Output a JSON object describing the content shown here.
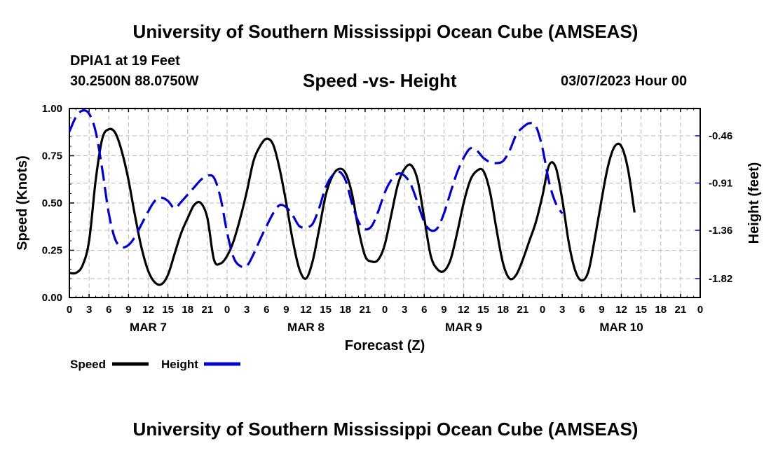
{
  "header": {
    "title": "University of Southern Mississippi Ocean Cube (AMSEAS)",
    "station": "DPIA1 at 19 Feet",
    "coordinates": "30.2500N  88.0750W",
    "subtitle": "Speed -vs- Height",
    "datetime": "03/07/2023 Hour 00"
  },
  "footer": {
    "title": "University of Southern Mississippi Ocean Cube (AMSEAS)"
  },
  "chart_data": {
    "type": "line",
    "title": "Speed -vs- Height",
    "xlabel": "Forecast (Z)",
    "ylabel": "Speed (Knots)",
    "y2label": "Height (feet)",
    "xlim": [
      0,
      96
    ],
    "ylim": [
      0,
      1.0
    ],
    "y2lim": [
      -2.0,
      -0.2
    ],
    "grid": true,
    "x_tick_labels": [
      "0",
      "3",
      "6",
      "9",
      "12",
      "15",
      "18",
      "21",
      "0",
      "3",
      "6",
      "9",
      "12",
      "15",
      "18",
      "21",
      "0",
      "3",
      "6",
      "9",
      "12",
      "15",
      "18",
      "21",
      "0",
      "3",
      "6",
      "9",
      "12",
      "15",
      "18",
      "21",
      "0"
    ],
    "y_ticks": [
      0.0,
      0.25,
      0.5,
      0.75,
      1.0
    ],
    "y_tick_labels": [
      "0.00",
      "0.25",
      "0.50",
      "0.75",
      "1.00"
    ],
    "y2_ticks": [
      -0.46,
      -0.91,
      -1.36,
      -1.82
    ],
    "y2_tick_labels": [
      "-0.46",
      "-0.91",
      "-1.36",
      "-1.82"
    ],
    "day_labels": [
      {
        "label": "MAR 7",
        "hour": 12
      },
      {
        "label": "MAR 8",
        "hour": 36
      },
      {
        "label": "MAR 9",
        "hour": 60
      },
      {
        "label": "MAR 10",
        "hour": 84
      }
    ],
    "series": [
      {
        "name": "Speed",
        "axis": "left",
        "color": "#000000",
        "dash": "solid",
        "points": [
          [
            0,
            0.13
          ],
          [
            1,
            0.13
          ],
          [
            2,
            0.17
          ],
          [
            3,
            0.3
          ],
          [
            4,
            0.62
          ],
          [
            5,
            0.84
          ],
          [
            6,
            0.89
          ],
          [
            7,
            0.87
          ],
          [
            8,
            0.77
          ],
          [
            9,
            0.62
          ],
          [
            10,
            0.43
          ],
          [
            11,
            0.26
          ],
          [
            12,
            0.14
          ],
          [
            13,
            0.08
          ],
          [
            14,
            0.07
          ],
          [
            15,
            0.12
          ],
          [
            16,
            0.23
          ],
          [
            17,
            0.34
          ],
          [
            18,
            0.42
          ],
          [
            19,
            0.49
          ],
          [
            20,
            0.5
          ],
          [
            21,
            0.42
          ],
          [
            22,
            0.2
          ],
          [
            23,
            0.18
          ],
          [
            24,
            0.22
          ],
          [
            25,
            0.3
          ],
          [
            26,
            0.42
          ],
          [
            27,
            0.56
          ],
          [
            28,
            0.72
          ],
          [
            29,
            0.8
          ],
          [
            30,
            0.84
          ],
          [
            31,
            0.81
          ],
          [
            32,
            0.68
          ],
          [
            33,
            0.5
          ],
          [
            34,
            0.3
          ],
          [
            35,
            0.15
          ],
          [
            36,
            0.1
          ],
          [
            37,
            0.19
          ],
          [
            38,
            0.36
          ],
          [
            39,
            0.54
          ],
          [
            40,
            0.64
          ],
          [
            41,
            0.68
          ],
          [
            42,
            0.66
          ],
          [
            43,
            0.55
          ],
          [
            44,
            0.36
          ],
          [
            45,
            0.22
          ],
          [
            46,
            0.19
          ],
          [
            47,
            0.2
          ],
          [
            48,
            0.28
          ],
          [
            49,
            0.44
          ],
          [
            50,
            0.6
          ],
          [
            51,
            0.68
          ],
          [
            52,
            0.7
          ],
          [
            53,
            0.62
          ],
          [
            54,
            0.42
          ],
          [
            55,
            0.22
          ],
          [
            56,
            0.15
          ],
          [
            57,
            0.14
          ],
          [
            58,
            0.2
          ],
          [
            59,
            0.34
          ],
          [
            60,
            0.5
          ],
          [
            61,
            0.62
          ],
          [
            62,
            0.67
          ],
          [
            63,
            0.67
          ],
          [
            64,
            0.56
          ],
          [
            65,
            0.36
          ],
          [
            66,
            0.18
          ],
          [
            67,
            0.1
          ],
          [
            68,
            0.12
          ],
          [
            69,
            0.2
          ],
          [
            70,
            0.3
          ],
          [
            71,
            0.4
          ],
          [
            72,
            0.54
          ],
          [
            73,
            0.7
          ],
          [
            74,
            0.69
          ],
          [
            75,
            0.52
          ],
          [
            76,
            0.29
          ],
          [
            77,
            0.14
          ],
          [
            78,
            0.09
          ],
          [
            79,
            0.14
          ],
          [
            80,
            0.32
          ],
          [
            81,
            0.52
          ],
          [
            82,
            0.7
          ],
          [
            83,
            0.8
          ],
          [
            84,
            0.8
          ],
          [
            85,
            0.68
          ],
          [
            86,
            0.45
          ]
        ]
      },
      {
        "name": "Height",
        "axis": "right",
        "color": "#0000cc",
        "dash": "dashed",
        "points": [
          [
            0,
            -0.42
          ],
          [
            1,
            -0.28
          ],
          [
            2,
            -0.22
          ],
          [
            3,
            -0.25
          ],
          [
            4,
            -0.42
          ],
          [
            5,
            -0.78
          ],
          [
            6,
            -1.2
          ],
          [
            7,
            -1.45
          ],
          [
            8,
            -1.52
          ],
          [
            9,
            -1.5
          ],
          [
            10,
            -1.42
          ],
          [
            11,
            -1.3
          ],
          [
            12,
            -1.18
          ],
          [
            13,
            -1.08
          ],
          [
            14,
            -1.05
          ],
          [
            15,
            -1.08
          ],
          [
            16,
            -1.15
          ],
          [
            17,
            -1.09
          ],
          [
            18,
            -1.02
          ],
          [
            19,
            -0.95
          ],
          [
            20,
            -0.88
          ],
          [
            21,
            -0.84
          ],
          [
            22,
            -0.86
          ],
          [
            23,
            -1.05
          ],
          [
            24,
            -1.38
          ],
          [
            25,
            -1.62
          ],
          [
            26,
            -1.7
          ],
          [
            27,
            -1.7
          ],
          [
            28,
            -1.59
          ],
          [
            29,
            -1.45
          ],
          [
            30,
            -1.32
          ],
          [
            31,
            -1.2
          ],
          [
            32,
            -1.12
          ],
          [
            33,
            -1.14
          ],
          [
            34,
            -1.22
          ],
          [
            35,
            -1.32
          ],
          [
            36,
            -1.33
          ],
          [
            37,
            -1.3
          ],
          [
            38,
            -1.15
          ],
          [
            39,
            -0.95
          ],
          [
            40,
            -0.84
          ],
          [
            41,
            -0.8
          ],
          [
            42,
            -0.88
          ],
          [
            43,
            -1.1
          ],
          [
            44,
            -1.28
          ],
          [
            45,
            -1.35
          ],
          [
            46,
            -1.32
          ],
          [
            47,
            -1.18
          ],
          [
            48,
            -1.0
          ],
          [
            49,
            -0.88
          ],
          [
            50,
            -0.82
          ],
          [
            51,
            -0.84
          ],
          [
            52,
            -0.93
          ],
          [
            53,
            -1.1
          ],
          [
            54,
            -1.28
          ],
          [
            55,
            -1.36
          ],
          [
            56,
            -1.34
          ],
          [
            57,
            -1.2
          ],
          [
            58,
            -1.0
          ],
          [
            59,
            -0.81
          ],
          [
            60,
            -0.67
          ],
          [
            61,
            -0.58
          ],
          [
            62,
            -0.6
          ],
          [
            63,
            -0.67
          ],
          [
            64,
            -0.71
          ],
          [
            65,
            -0.72
          ],
          [
            66,
            -0.7
          ],
          [
            67,
            -0.6
          ],
          [
            68,
            -0.45
          ],
          [
            69,
            -0.38
          ],
          [
            70,
            -0.34
          ],
          [
            71,
            -0.37
          ],
          [
            72,
            -0.58
          ],
          [
            73,
            -0.9
          ],
          [
            74,
            -1.1
          ],
          [
            75,
            -1.2
          ]
        ]
      }
    ]
  },
  "legend": {
    "speed_label": "Speed",
    "height_label": "Height",
    "speed_color": "#000000",
    "height_color": "#0000cc"
  }
}
